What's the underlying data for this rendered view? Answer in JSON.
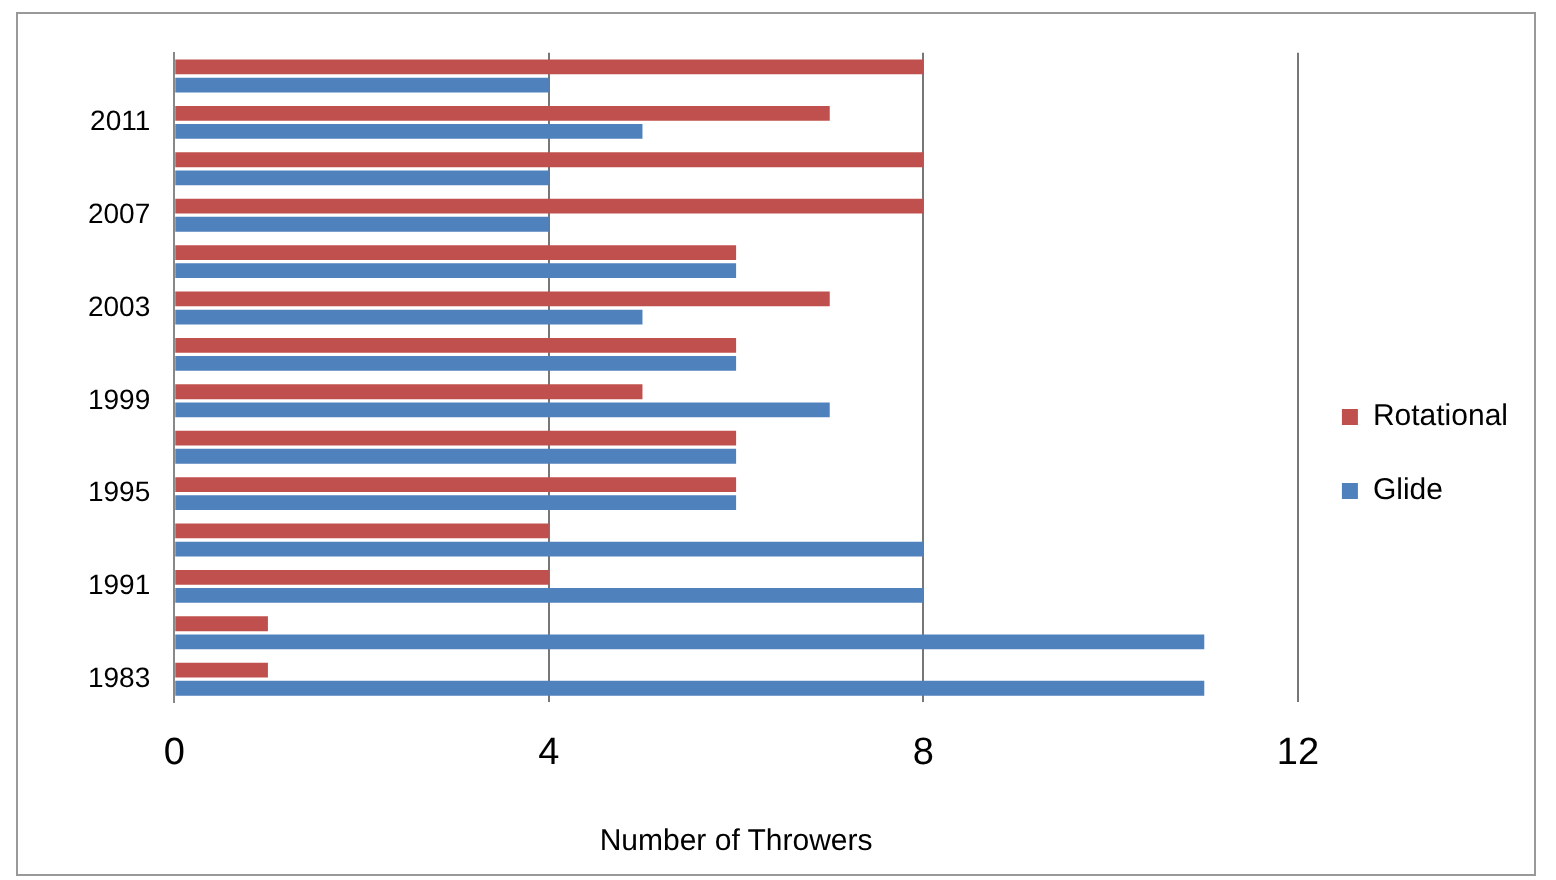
{
  "chart_data": {
    "type": "bar",
    "orientation": "horizontal",
    "xlabel": "Number of Throwers",
    "categories": [
      null,
      "2011",
      null,
      "2007",
      null,
      "2003",
      null,
      "1999",
      null,
      "1995",
      null,
      "1991",
      null,
      "1983"
    ],
    "series": [
      {
        "name": "Rotational",
        "color": "#c0504d",
        "values": [
          8,
          7,
          8,
          8,
          6,
          7,
          6,
          5,
          6,
          6,
          4,
          4,
          1,
          1
        ]
      },
      {
        "name": "Glide",
        "color": "#4f81bd",
        "values": [
          4,
          5,
          4,
          4,
          6,
          5,
          6,
          7,
          6,
          6,
          8,
          8,
          11,
          11
        ]
      }
    ],
    "xlim": [
      0,
      12
    ],
    "xticks": [
      0,
      4,
      8,
      12
    ],
    "grid": "x",
    "legend": "right"
  }
}
